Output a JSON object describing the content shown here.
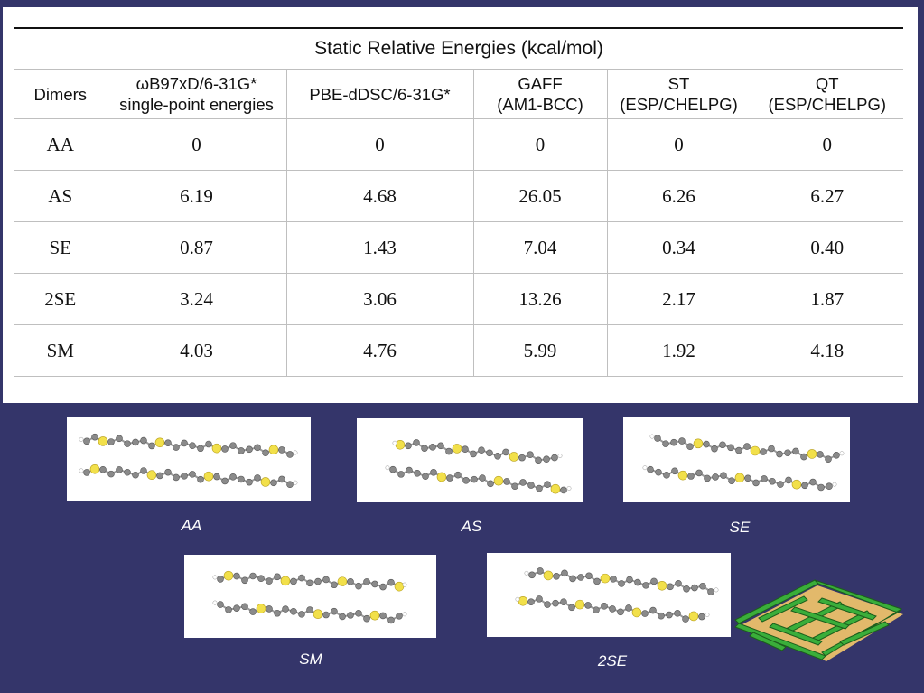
{
  "table": {
    "title": "Static Relative Energies (kcal/mol)",
    "headers": [
      {
        "l1": "Dimers",
        "l2": ""
      },
      {
        "l1": "ωB97xD/6-31G*",
        "l2": "single-point energies"
      },
      {
        "l1": "PBE-dDSC/6-31G*",
        "l2": ""
      },
      {
        "l1": "GAFF",
        "l2": "(AM1-BCC)"
      },
      {
        "l1": "ST",
        "l2": "(ESP/CHELPG)"
      },
      {
        "l1": "QT",
        "l2": "(ESP/CHELPG)"
      }
    ],
    "rows": [
      [
        "AA",
        "0",
        "0",
        "0",
        "0",
        "0"
      ],
      [
        "AS",
        "6.19",
        "4.68",
        "26.05",
        "6.26",
        "6.27"
      ],
      [
        "SE",
        "0.87",
        "1.43",
        "7.04",
        "0.34",
        "0.40"
      ],
      [
        "2SE",
        "3.24",
        "3.06",
        "13.26",
        "2.17",
        "1.87"
      ],
      [
        "SM",
        "4.03",
        "4.76",
        "5.99",
        "1.92",
        "4.18"
      ]
    ]
  },
  "figures": {
    "captions": [
      "AA",
      "AS",
      "SE",
      "SM",
      "2SE"
    ]
  },
  "colors": {
    "background": "#34356a",
    "carbon": "#8a8a8a",
    "sulfur": "#f2e04a",
    "hydrogen": "#ffffff",
    "maze_green": "#2e9a2e",
    "maze_base": "#e2b96b"
  }
}
